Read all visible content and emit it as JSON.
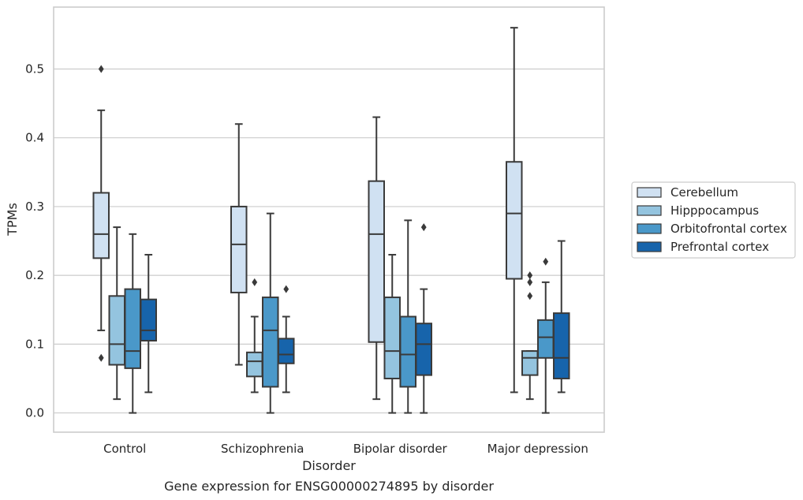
{
  "caption": "Gene expression for ENSG00000274895 by disorder",
  "chart_data": {
    "type": "box",
    "title": "",
    "xlabel": "Disorder",
    "ylabel": "TPMs",
    "ylim": [
      -0.028,
      0.59
    ],
    "yticks": [
      0.0,
      0.1,
      0.2,
      0.3,
      0.4,
      0.5
    ],
    "ytick_labels": [
      "0.0",
      "0.1",
      "0.2",
      "0.3",
      "0.4",
      "0.5"
    ],
    "grid": true,
    "legend_position": "right",
    "categories": [
      "Control",
      "Schizophrenia",
      "Bipolar disorder",
      "Major depression"
    ],
    "series": [
      {
        "name": "Cerebellum",
        "color": "#d0e1f2",
        "boxes": [
          {
            "whislo": 0.12,
            "q1": 0.225,
            "med": 0.26,
            "q3": 0.32,
            "whishi": 0.44,
            "fliers": [
              0.5,
              0.08
            ]
          },
          {
            "whislo": 0.07,
            "q1": 0.175,
            "med": 0.245,
            "q3": 0.3,
            "whishi": 0.42,
            "fliers": []
          },
          {
            "whislo": 0.02,
            "q1": 0.103,
            "med": 0.26,
            "q3": 0.337,
            "whishi": 0.43,
            "fliers": []
          },
          {
            "whislo": 0.03,
            "q1": 0.195,
            "med": 0.29,
            "q3": 0.365,
            "whishi": 0.56,
            "fliers": []
          }
        ]
      },
      {
        "name": "Hipppocampus",
        "color": "#94c4df",
        "boxes": [
          {
            "whislo": 0.02,
            "q1": 0.07,
            "med": 0.1,
            "q3": 0.17,
            "whishi": 0.27,
            "fliers": []
          },
          {
            "whislo": 0.03,
            "q1": 0.053,
            "med": 0.075,
            "q3": 0.088,
            "whishi": 0.14,
            "fliers": [
              0.19
            ]
          },
          {
            "whislo": 0.0,
            "q1": 0.05,
            "med": 0.09,
            "q3": 0.168,
            "whishi": 0.23,
            "fliers": []
          },
          {
            "whislo": 0.02,
            "q1": 0.055,
            "med": 0.08,
            "q3": 0.09,
            "whishi": 0.09,
            "fliers": [
              0.2,
              0.19,
              0.17
            ]
          }
        ]
      },
      {
        "name": "Orbitofrontal cortex",
        "color": "#4a98c9",
        "boxes": [
          {
            "whislo": 0.0,
            "q1": 0.065,
            "med": 0.09,
            "q3": 0.18,
            "whishi": 0.26,
            "fliers": []
          },
          {
            "whislo": 0.0,
            "q1": 0.038,
            "med": 0.12,
            "q3": 0.168,
            "whishi": 0.29,
            "fliers": []
          },
          {
            "whislo": 0.0,
            "q1": 0.038,
            "med": 0.085,
            "q3": 0.14,
            "whishi": 0.28,
            "fliers": []
          },
          {
            "whislo": 0.0,
            "q1": 0.08,
            "med": 0.11,
            "q3": 0.135,
            "whishi": 0.19,
            "fliers": [
              0.22
            ]
          }
        ]
      },
      {
        "name": "Prefrontal cortex",
        "color": "#1764ab",
        "boxes": [
          {
            "whislo": 0.03,
            "q1": 0.105,
            "med": 0.12,
            "q3": 0.165,
            "whishi": 0.23,
            "fliers": []
          },
          {
            "whislo": 0.03,
            "q1": 0.072,
            "med": 0.085,
            "q3": 0.108,
            "whishi": 0.14,
            "fliers": [
              0.18
            ]
          },
          {
            "whislo": 0.0,
            "q1": 0.055,
            "med": 0.1,
            "q3": 0.13,
            "whishi": 0.18,
            "fliers": [
              0.27
            ]
          },
          {
            "whislo": 0.03,
            "q1": 0.05,
            "med": 0.08,
            "q3": 0.145,
            "whishi": 0.25,
            "fliers": []
          }
        ]
      }
    ]
  }
}
